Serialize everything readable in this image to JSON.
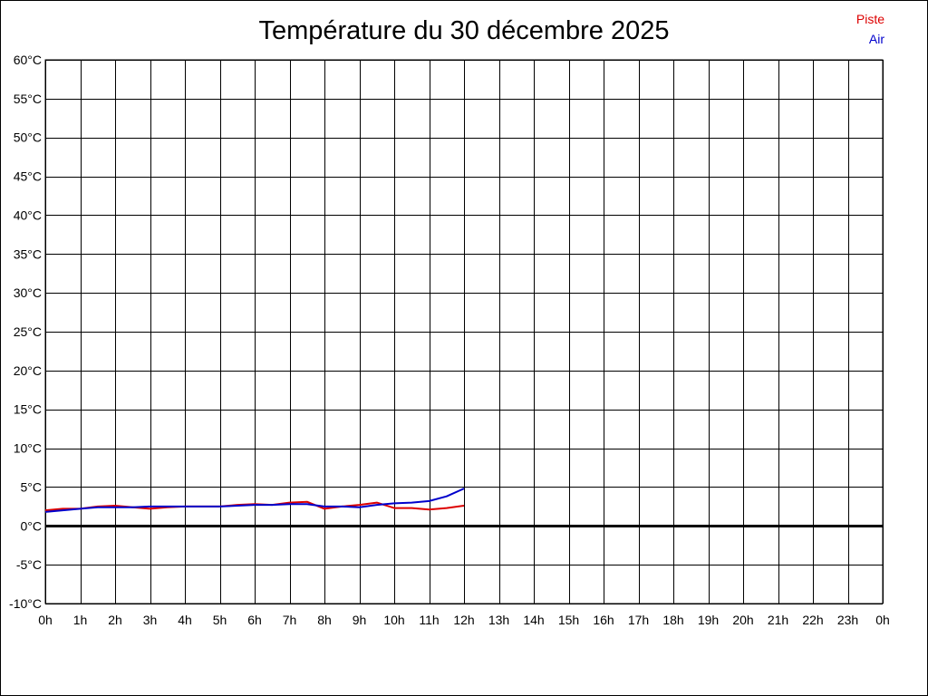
{
  "chart_data": {
    "type": "line",
    "title": "Température du 30 décembre 2025",
    "xlabel": "",
    "ylabel": "",
    "x_ticks": [
      "0h",
      "1h",
      "2h",
      "3h",
      "4h",
      "5h",
      "6h",
      "7h",
      "8h",
      "9h",
      "10h",
      "11h",
      "12h",
      "13h",
      "14h",
      "15h",
      "16h",
      "17h",
      "18h",
      "19h",
      "20h",
      "21h",
      "22h",
      "23h",
      "0h"
    ],
    "y_ticks": [
      "60°C",
      "55°C",
      "50°C",
      "45°C",
      "40°C",
      "35°C",
      "30°C",
      "25°C",
      "20°C",
      "15°C",
      "10°C",
      "5°C",
      "0°C",
      "-5°C",
      "-10°C"
    ],
    "xlim": [
      0,
      24
    ],
    "ylim": [
      -10,
      60
    ],
    "grid": true,
    "legend_position": "top-right",
    "series": [
      {
        "name": "Piste",
        "color": "#dd0000",
        "x": [
          0,
          0.5,
          1,
          1.5,
          2,
          2.5,
          3,
          3.5,
          4,
          4.5,
          5,
          5.5,
          6,
          6.5,
          7,
          7.5,
          8,
          8.5,
          9,
          9.5,
          10,
          10.5,
          11,
          11.5,
          12
        ],
        "values": [
          2.0,
          2.2,
          2.2,
          2.5,
          2.6,
          2.4,
          2.2,
          2.4,
          2.5,
          2.5,
          2.5,
          2.7,
          2.8,
          2.7,
          3.0,
          3.1,
          2.2,
          2.5,
          2.7,
          3.0,
          2.3,
          2.3,
          2.1,
          2.3,
          2.6
        ]
      },
      {
        "name": "Air",
        "color": "#0000cc",
        "x": [
          0,
          0.5,
          1,
          1.5,
          2,
          2.5,
          3,
          3.5,
          4,
          4.5,
          5,
          5.5,
          6,
          6.5,
          7,
          7.5,
          8,
          8.5,
          9,
          9.5,
          10,
          10.5,
          11,
          11.5,
          12
        ],
        "values": [
          1.8,
          2.0,
          2.2,
          2.4,
          2.4,
          2.4,
          2.5,
          2.5,
          2.5,
          2.5,
          2.5,
          2.6,
          2.7,
          2.7,
          2.8,
          2.8,
          2.5,
          2.5,
          2.4,
          2.7,
          2.9,
          3.0,
          3.2,
          3.8,
          4.8
        ]
      }
    ]
  }
}
